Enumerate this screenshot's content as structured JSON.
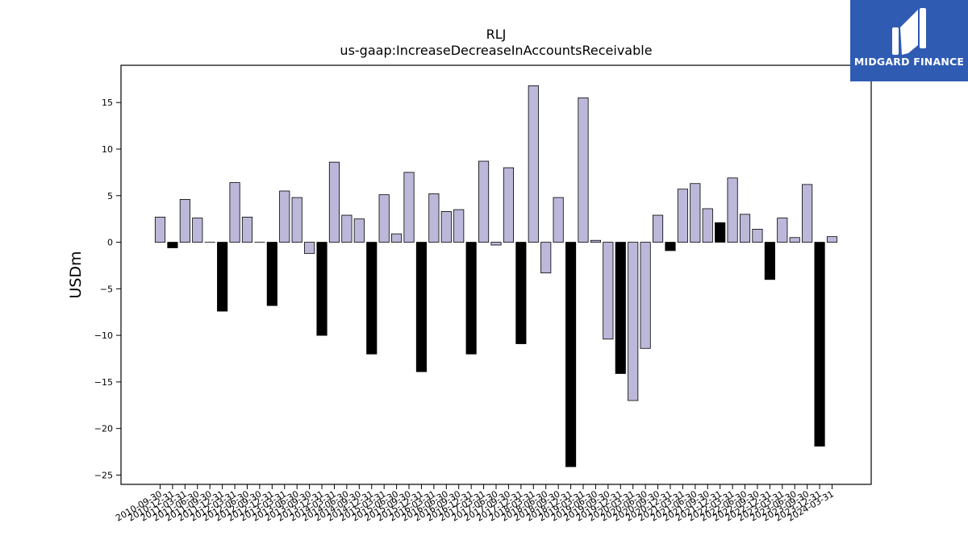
{
  "brand": {
    "name": "MIDGARD FINANCE",
    "background": "#2f5bb3",
    "icon": "midgard-logo-icon"
  },
  "chart_data": {
    "type": "bar",
    "title": "RLJ",
    "subtitle": "us-gaap:IncreaseDecreaseInAccountsReceivable",
    "xlabel": "",
    "ylabel": "USDm",
    "ylim": [
      -26,
      19
    ],
    "yticks": [
      -25,
      -20,
      -15,
      -10,
      -5,
      0,
      5,
      10,
      15
    ],
    "grid": false,
    "legend": "none",
    "colors": {
      "normal": "#bcb8da",
      "q4": "#000000",
      "edge": "#000000"
    },
    "categories": [
      "2010-09-30",
      "2010-12-31",
      "2011-03-31",
      "2011-06-30",
      "2011-09-30",
      "2011-12-31",
      "2012-03-31",
      "2012-06-30",
      "2012-09-30",
      "2012-12-31",
      "2013-03-31",
      "2013-06-30",
      "2013-09-30",
      "2013-12-31",
      "2014-03-31",
      "2014-06-30",
      "2014-09-30",
      "2014-12-31",
      "2015-03-31",
      "2015-06-30",
      "2015-09-30",
      "2015-12-31",
      "2016-03-31",
      "2016-06-30",
      "2016-09-30",
      "2016-12-31",
      "2017-03-31",
      "2017-06-30",
      "2017-09-30",
      "2017-12-31",
      "2018-03-31",
      "2018-06-30",
      "2018-09-30",
      "2018-12-31",
      "2019-03-31",
      "2019-06-30",
      "2019-09-30",
      "2019-12-31",
      "2020-03-31",
      "2020-06-30",
      "2020-09-30",
      "2020-12-31",
      "2021-03-31",
      "2021-06-30",
      "2021-09-30",
      "2021-12-31",
      "2022-03-31",
      "2022-06-30",
      "2022-09-30",
      "2022-12-31",
      "2023-03-31",
      "2023-06-30",
      "2023-09-30",
      "2023-12-31",
      "2024-03-31"
    ],
    "values": [
      2.7,
      -0.6,
      4.6,
      2.6,
      0.0,
      -7.4,
      6.4,
      2.7,
      0.0,
      -6.8,
      5.5,
      4.8,
      -1.2,
      -10.0,
      8.6,
      2.9,
      2.5,
      -12.0,
      5.1,
      0.9,
      7.5,
      -13.9,
      5.2,
      3.3,
      3.5,
      -12.0,
      8.7,
      -0.3,
      8.0,
      -10.9,
      16.8,
      -3.3,
      4.8,
      -24.1,
      15.5,
      0.2,
      -10.4,
      -14.1,
      -17.0,
      -11.4,
      2.9,
      -0.9,
      5.7,
      6.3,
      3.6,
      2.1,
      6.9,
      3.0,
      1.4,
      -4.0,
      2.6,
      0.5,
      6.2,
      -21.9,
      0.6
    ],
    "highlighted": [
      false,
      true,
      false,
      false,
      false,
      true,
      false,
      false,
      false,
      true,
      false,
      false,
      false,
      true,
      false,
      false,
      false,
      true,
      false,
      false,
      false,
      true,
      false,
      false,
      false,
      true,
      false,
      false,
      false,
      true,
      false,
      false,
      false,
      true,
      false,
      false,
      false,
      true,
      false,
      false,
      false,
      true,
      false,
      false,
      false,
      true,
      false,
      false,
      false,
      true,
      false,
      false,
      false,
      true,
      false
    ]
  }
}
